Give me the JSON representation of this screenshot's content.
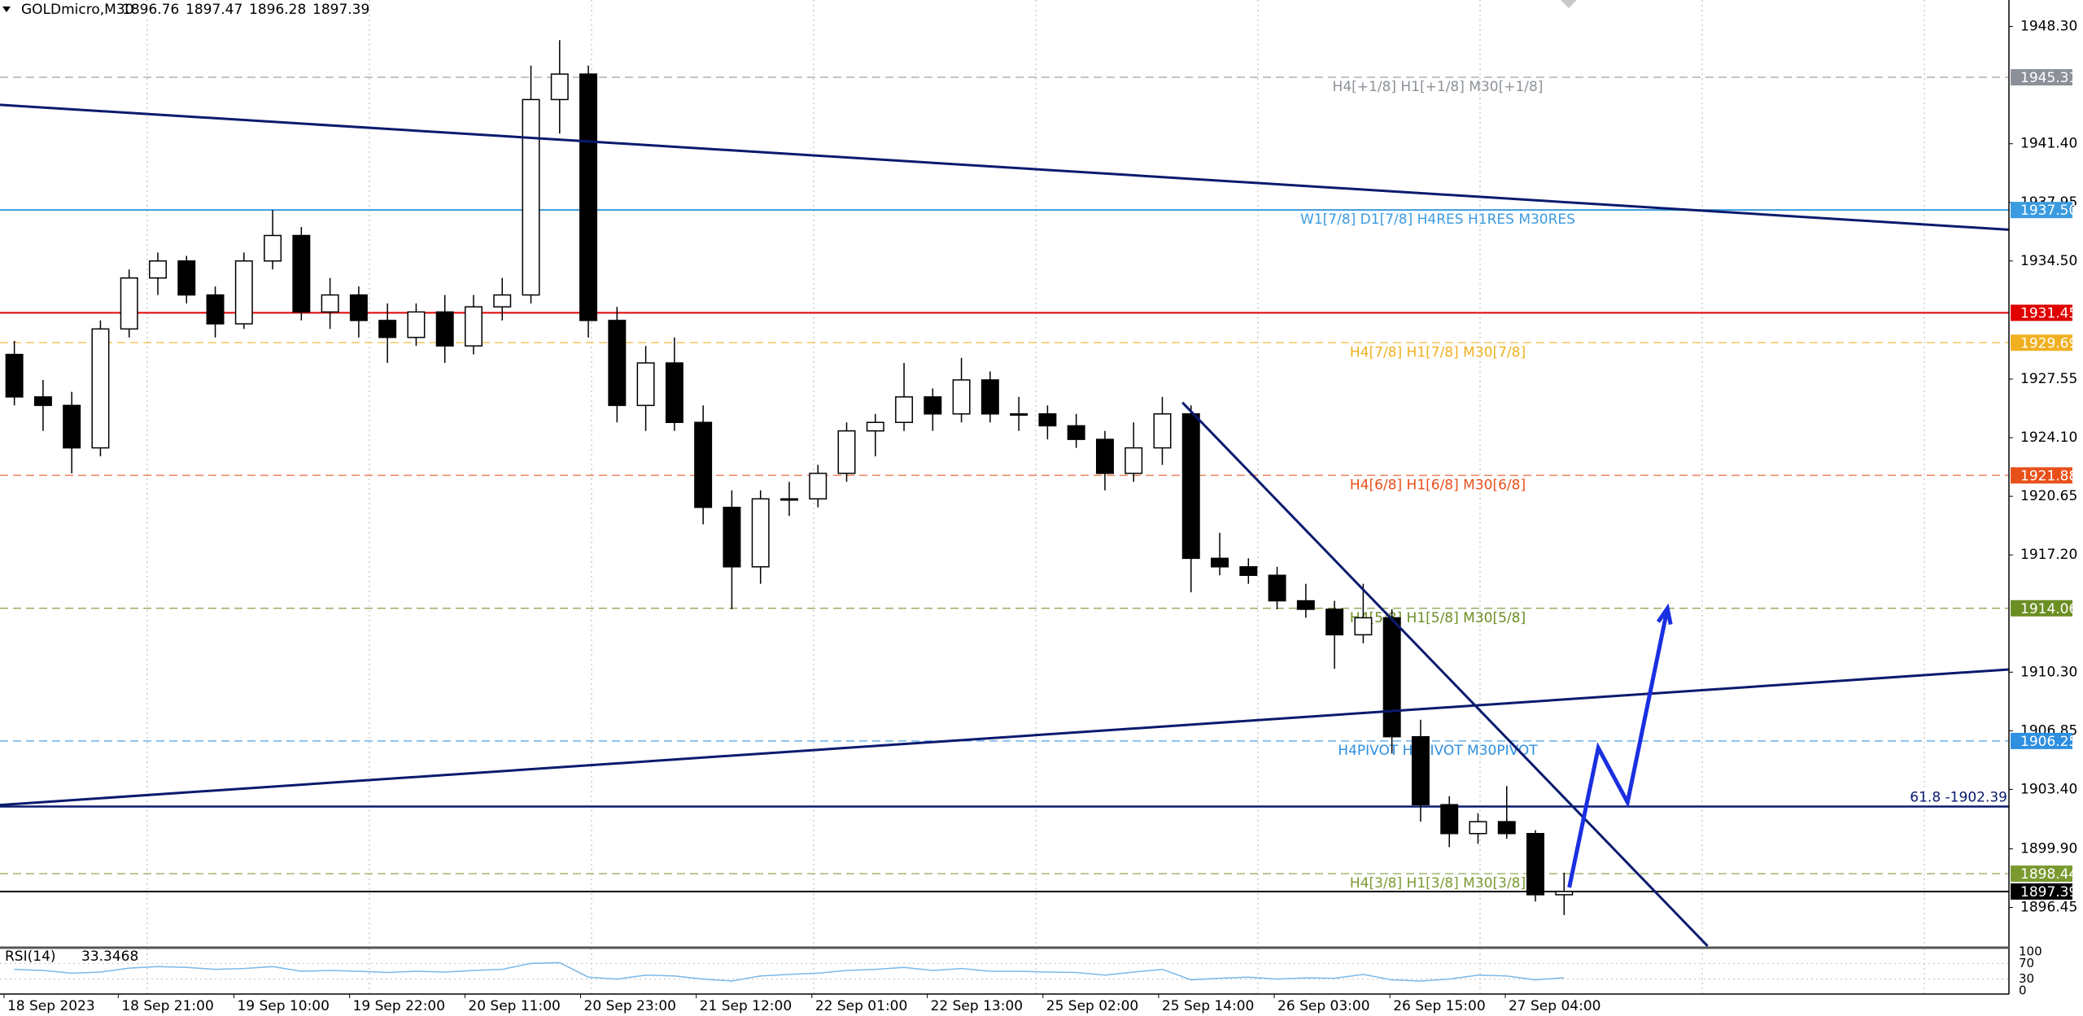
{
  "chart_data": {
    "type": "candlestick",
    "symbol": "GOLDmicro,M30",
    "ohlc": [
      1896.76,
      1897.47,
      1896.28,
      1897.39
    ],
    "up_color": "#ffffff",
    "down_color": "#000000",
    "candles": {
      "open": [
        1929,
        1926.5,
        1926,
        1923.5,
        1930.5,
        1933.5,
        1934.5,
        1932.5,
        1930.8,
        1934.5,
        1936,
        1931.5,
        1932.5,
        1931,
        1930,
        1931.5,
        1929.5,
        1931.8,
        1932.5,
        1944,
        1945.5,
        1931,
        1926,
        1928.5,
        1925,
        1920,
        1916.5,
        1920.5,
        1920.5,
        1922,
        1924.5,
        1925,
        1926.5,
        1925.5,
        1927.5,
        1925.5,
        1925.5,
        1924.8,
        1924,
        1922,
        1923.5,
        1925.5,
        1917,
        1916.5,
        1916,
        1914.5,
        1914,
        1912.5,
        1913.5,
        1906.5,
        1902.5,
        1900.8,
        1901.5,
        1900.8,
        1897.2
      ],
      "high": [
        1929.8,
        1927.5,
        1926.8,
        1931,
        1934,
        1935,
        1934.8,
        1933,
        1935,
        1937.5,
        1936.5,
        1933.5,
        1933,
        1932,
        1932,
        1932.5,
        1932.5,
        1933.5,
        1946,
        1947.5,
        1946,
        1931.8,
        1929.5,
        1930,
        1926,
        1921,
        1921,
        1921.5,
        1922.5,
        1925,
        1925.5,
        1928.5,
        1927,
        1928.8,
        1928,
        1926.5,
        1926,
        1925.5,
        1924.5,
        1925,
        1926.5,
        1926,
        1918.5,
        1917,
        1916.5,
        1915.5,
        1914.5,
        1915.5,
        1914,
        1907.5,
        1903,
        1902,
        1903.6,
        1901,
        1898.5
      ],
      "low": [
        1926,
        1924.5,
        1922,
        1923,
        1930,
        1932.5,
        1932,
        1930,
        1930.5,
        1934,
        1931,
        1930.5,
        1930,
        1928.5,
        1929.5,
        1928.5,
        1929,
        1931,
        1932,
        1942,
        1930,
        1925,
        1924.5,
        1924.5,
        1919,
        1914,
        1915.5,
        1919.5,
        1920,
        1921.5,
        1923,
        1924.5,
        1924.5,
        1925,
        1925,
        1924.5,
        1924,
        1923.5,
        1921,
        1921.5,
        1922.5,
        1915,
        1916,
        1915.5,
        1914,
        1913.5,
        1910.5,
        1912,
        1905.5,
        1901.5,
        1900,
        1900.2,
        1900.5,
        1896.8,
        1896
      ],
      "close": [
        1926.5,
        1926,
        1923.5,
        1930.5,
        1933.5,
        1934.5,
        1932.5,
        1930.8,
        1934.5,
        1936,
        1931.5,
        1932.5,
        1931,
        1930,
        1931.5,
        1929.5,
        1931.8,
        1932.5,
        1944,
        1945.5,
        1931,
        1926,
        1928.5,
        1925,
        1920,
        1916.5,
        1920.5,
        1920.5,
        1922,
        1924.5,
        1925,
        1926.5,
        1925.5,
        1927.5,
        1925.5,
        1925.5,
        1924.8,
        1924,
        1922,
        1923.5,
        1925.5,
        1917,
        1916.5,
        1916,
        1914.5,
        1914,
        1912.5,
        1913.5,
        1906.5,
        1902.5,
        1900.8,
        1901.5,
        1900.8,
        1897.2,
        1897.39
      ]
    },
    "xlim": [
      0,
      70
    ],
    "xticks": [
      {
        "value": 0.14,
        "label": "18 Sep 2023"
      },
      {
        "value": 4.12,
        "label": "18 Sep 21:00"
      },
      {
        "value": 8.15,
        "label": "19 Sep 10:00"
      },
      {
        "value": 12.18,
        "label": "19 Sep 22:00"
      },
      {
        "value": 16.2,
        "label": "20 Sep 11:00"
      },
      {
        "value": 20.23,
        "label": "20 Sep 23:00"
      },
      {
        "value": 24.26,
        "label": "21 Sep 12:00"
      },
      {
        "value": 28.29,
        "label": "22 Sep 01:00"
      },
      {
        "value": 32.31,
        "label": "22 Sep 13:00"
      },
      {
        "value": 36.34,
        "label": "25 Sep 02:00"
      },
      {
        "value": 40.37,
        "label": "25 Sep 14:00"
      },
      {
        "value": 44.4,
        "label": "26 Sep 03:00"
      },
      {
        "value": 48.43,
        "label": "26 Sep 15:00"
      },
      {
        "value": 52.45,
        "label": "27 Sep 04:00"
      }
    ],
    "ylim": [
      1894.18,
      1949.86
    ],
    "yticks": [
      {
        "value": 1948.3,
        "label": "1948.30"
      },
      {
        "value": 1941.4,
        "label": "1941.40"
      },
      1937.95,
      {
        "value": 1934.5,
        "label": "1934.50"
      },
      1927.55,
      {
        "value": 1924.1,
        "label": "1924.10"
      },
      1920.65,
      {
        "value": 1917.2,
        "label": "1917.20"
      },
      {
        "value": 1910.3,
        "label": "1910.30"
      },
      1906.85,
      {
        "value": 1903.4,
        "label": "1903.40"
      },
      {
        "value": 1899.9,
        "label": "1899.90"
      },
      1896.45
    ],
    "grid": true,
    "levels": [
      {
        "value": 1945.31,
        "color": "#8c9199",
        "style": "dashed",
        "text": "H4[+1/8] H1[+1/8] M30[+1/8]"
      },
      {
        "value": 1937.5,
        "price_label": "1937.50",
        "color": "#3b9be0",
        "style": "solid",
        "text": "W1[7/8] D1[7/8] H4RES H1RES M30RES"
      },
      {
        "value": 1931.45,
        "color": "#e00000",
        "style": "solid"
      },
      {
        "value": 1929.69,
        "color": "#f0b020",
        "style": "dashed",
        "text": "H4[7/8] H1[7/8] M30[7/8]"
      },
      {
        "value": 1921.88,
        "color": "#e8501a",
        "style": "dashed",
        "text": "H4[6/8] H1[6/8] M30[6/8]"
      },
      {
        "value": 1914.06,
        "color": "#6b8e23",
        "style": "dashed",
        "text": "H4[5/8] H1[5/8] M30[5/8]"
      },
      {
        "value": 1906.25,
        "color": "#2f8fe0",
        "style": "dashed",
        "text": "H4PIVOT H1PIVOT M30PIVOT"
      },
      {
        "value": 1898.44,
        "color": "#7a9a30",
        "style": "dashed",
        "text": "H4[3/8] H1[3/8] M30[3/8]"
      },
      {
        "value": 1897.39,
        "color": "#000000",
        "style": "solid"
      }
    ],
    "fib_level": {
      "value": 1902.39,
      "color": "#0a1a6e",
      "text": "61.8 -1902.39"
    },
    "drawings": [
      {
        "color": "#0a1a6e",
        "x": [
          0,
          70
        ],
        "y": [
          1943.69,
          1936.34
        ]
      },
      {
        "color": "#0a1a6e",
        "x": [
          0,
          70
        ],
        "y": [
          1902.48,
          1910.46
        ]
      },
      {
        "color": "#0a1a6e",
        "x": [
          41.2,
          59.5
        ],
        "y": [
          1926.17,
          1894.18
        ]
      }
    ],
    "arrow": {
      "color": "#1a2fe0",
      "x": [
        54.68,
        55.69,
        56.71,
        58.1
      ],
      "y": [
        1897.63,
        1905.84,
        1902.64,
        1914.05
      ]
    },
    "rsi": {
      "label": "RSI(14)",
      "color": "#7ab8e8",
      "ylim": [
        0,
        100
      ],
      "yticks": [
        100,
        70,
        30,
        0
      ],
      "values": [
        55,
        52,
        45,
        48,
        58,
        62,
        60,
        55,
        57,
        62,
        50,
        52,
        50,
        47,
        50,
        48,
        52,
        55,
        70,
        72,
        35,
        30,
        40,
        38,
        30,
        25,
        38,
        42,
        45,
        52,
        55,
        60,
        52,
        57,
        50,
        50,
        48,
        47,
        40,
        48,
        55,
        28,
        32,
        35,
        30,
        33,
        32,
        42,
        28,
        25,
        30,
        40,
        38,
        28,
        33.3468
      ]
    }
  }
}
